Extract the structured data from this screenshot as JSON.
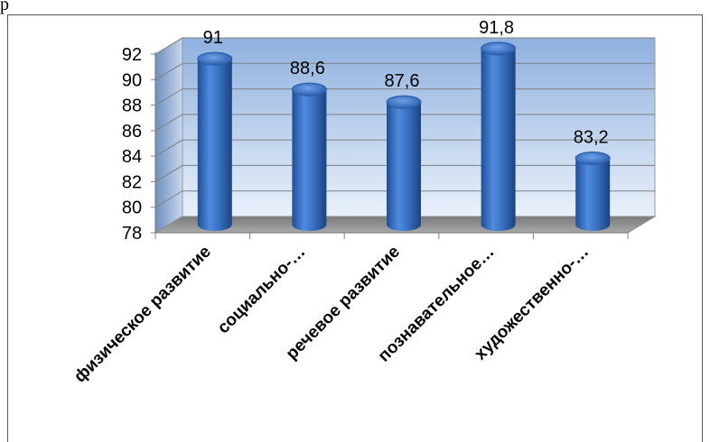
{
  "page": {
    "top_glyph": "р"
  },
  "chart_data": {
    "type": "bar",
    "categories": [
      "физическое развитие",
      "социально-…",
      "речевое развитие",
      "познавательное…",
      "художественно-…"
    ],
    "values": [
      91,
      88.6,
      87.6,
      91.8,
      83.2
    ],
    "data_labels": [
      "91",
      "88,6",
      "87,6",
      "91,8",
      "83,2"
    ],
    "yticks": [
      "78",
      "80",
      "82",
      "84",
      "86",
      "88",
      "90",
      "92"
    ],
    "ylim": [
      78,
      92
    ],
    "grid": true,
    "bar_color": "#3a73c4",
    "wall_color_top": "#8fb1de",
    "wall_color_bottom": "#e8f0fa",
    "floor_color": "#8b8b8b"
  }
}
